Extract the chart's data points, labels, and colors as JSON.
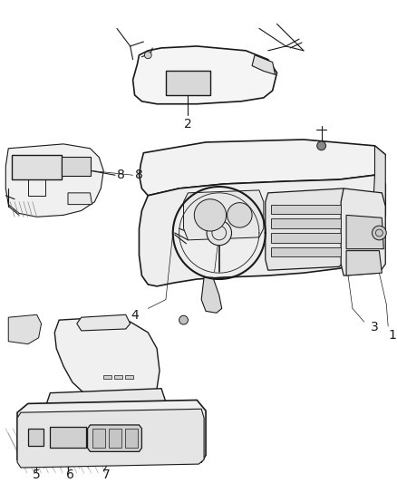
{
  "background_color": "#ffffff",
  "fig_width": 4.38,
  "fig_height": 5.33,
  "dpi": 100,
  "line_color": "#1a1a1a",
  "text_color": "#1a1a1a",
  "label_fontsize": 9,
  "gray_fill": "#e8e8e8",
  "mid_gray": "#c0c0c0"
}
